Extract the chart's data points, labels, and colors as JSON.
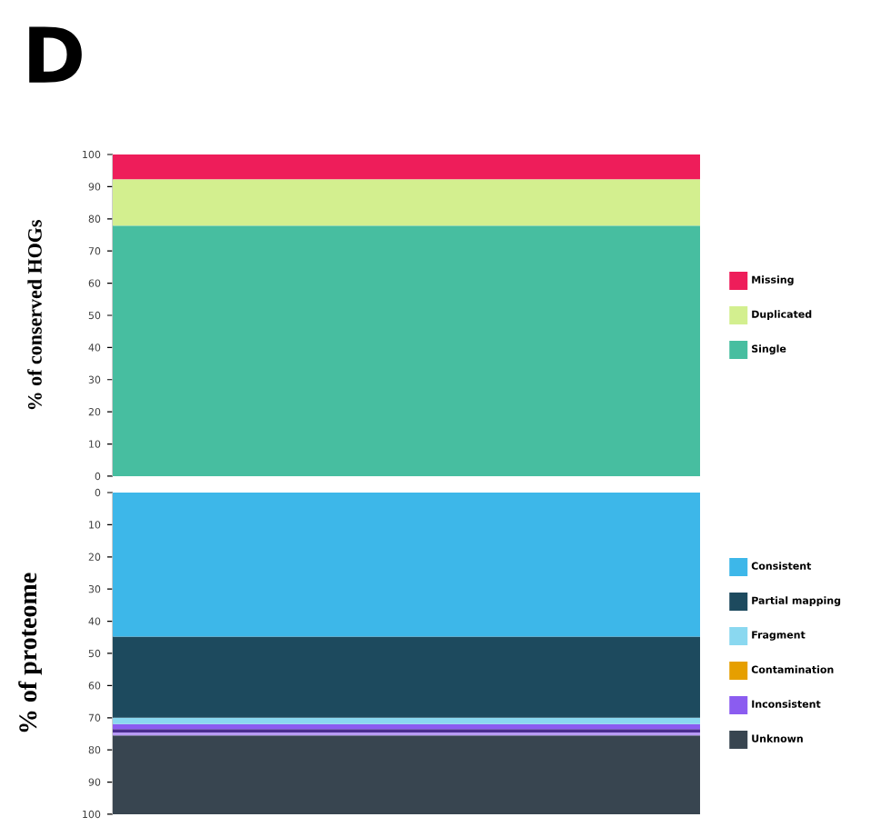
{
  "chart_data": [
    {
      "type": "bar",
      "title": "D",
      "ylabel": "% of conserved HOGs",
      "categories": [
        null
      ],
      "stacked": true,
      "ylim": [
        0,
        100
      ],
      "yticks": [
        0,
        10,
        20,
        30,
        40,
        50,
        60,
        70,
        80,
        90,
        100
      ],
      "tick_labels": "y",
      "legend": "right",
      "series": [
        {
          "name": "Single",
          "color": "#47bea0",
          "values": [
            77.8
          ]
        },
        {
          "name": "Duplicated",
          "color": "#d3ef8f",
          "values": [
            14.4
          ]
        },
        {
          "name": "Missing",
          "color": "#ee1d5a",
          "values": [
            7.8
          ]
        }
      ]
    },
    {
      "type": "bar",
      "ylabel": "% of proteome",
      "categories": [
        null
      ],
      "stacked": true,
      "ylim": [
        100,
        0
      ],
      "yticks": [
        0,
        10,
        20,
        30,
        40,
        50,
        60,
        70,
        80,
        90,
        100
      ],
      "tick_labels": "y",
      "legend": "right",
      "series": [
        {
          "name": "Consistent",
          "color": "#3db7e9",
          "values": [
            44.8
          ]
        },
        {
          "name": "Partial mapping",
          "color": "#1d4a5e",
          "values": [
            25.2
          ]
        },
        {
          "name": "Fragment",
          "color": "#8ad8f0",
          "values": [
            2.0
          ]
        },
        {
          "name": "Contamination",
          "color": "#e69f00",
          "values": [
            0
          ]
        },
        {
          "name": "Inconsistent",
          "color": "#8b5cf0",
          "values": [
            1.5
          ]
        },
        {
          "color": "#4a2d8f",
          "values": [
            1.1
          ]
        },
        {
          "color": "#b89af5",
          "values": [
            0.9
          ]
        },
        {
          "name": "Unknown",
          "color": "#384550",
          "values": [
            24.5
          ]
        }
      ]
    }
  ]
}
